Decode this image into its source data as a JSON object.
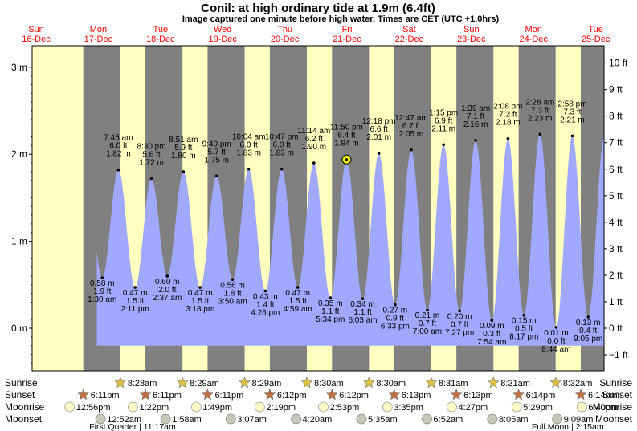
{
  "title": "Conil: at high  ordinary tide at 1.9m (6.4ft)",
  "subtitle": "Image captured one minute before high water. Times are CET (UTC +1.0hrs)",
  "days": [
    {
      "dow": "Sun",
      "date": "16-Dec"
    },
    {
      "dow": "Mon",
      "date": "17-Dec"
    },
    {
      "dow": "Tue",
      "date": "18-Dec"
    },
    {
      "dow": "Wed",
      "date": "19-Dec"
    },
    {
      "dow": "Thu",
      "date": "20-Dec"
    },
    {
      "dow": "Fri",
      "date": "21-Dec"
    },
    {
      "dow": "Sat",
      "date": "22-Dec"
    },
    {
      "dow": "Sun",
      "date": "23-Dec"
    },
    {
      "dow": "Mon",
      "date": "24-Dec"
    },
    {
      "dow": "Tue",
      "date": "25-Dec"
    }
  ],
  "colors": {
    "day_bg": "#ffffc0",
    "night_bg": "#808080",
    "tide_fill": "#a0a8ff",
    "day_header": "#ff0000",
    "frame": "#000000",
    "current_marker": "#ffff00"
  },
  "chart_data": {
    "type": "area",
    "ylabel_left": "m",
    "ylabel_right": "ft",
    "ylim_m": [
      -0.45,
      3.1
    ],
    "y_ticks_left": [
      {
        "v": 0,
        "label": "0 m"
      },
      {
        "v": 1,
        "label": "1 m"
      },
      {
        "v": 2,
        "label": "2 m"
      },
      {
        "v": 3,
        "label": "3 m"
      }
    ],
    "y_ticks_right": [
      {
        "ft": -1,
        "label": "−1 ft"
      },
      {
        "ft": 0,
        "label": "0 ft"
      },
      {
        "ft": 1,
        "label": "1 ft"
      },
      {
        "ft": 2,
        "label": "2 ft"
      },
      {
        "ft": 3,
        "label": "3 ft"
      },
      {
        "ft": 4,
        "label": "4 ft"
      },
      {
        "ft": 5,
        "label": "5 ft"
      },
      {
        "ft": 6,
        "label": "6 ft"
      },
      {
        "ft": 7,
        "label": "7 ft"
      },
      {
        "ft": 8,
        "label": "8 ft"
      },
      {
        "ft": 9,
        "label": "9 ft"
      },
      {
        "ft": 10,
        "label": "10 ft"
      }
    ],
    "x_range_days": [
      16.0,
      25.6
    ],
    "tides": [
      {
        "kind": "low",
        "day": 17,
        "time": "1:30 am",
        "m": "0.58 m",
        "ft": "1.9 ft",
        "v": 0.58
      },
      {
        "kind": "high",
        "day": 17,
        "time": "7:45 am",
        "m": "1.82 m",
        "ft": "6.0 ft",
        "v": 1.82
      },
      {
        "kind": "low",
        "day": 17,
        "time": "2:11 pm",
        "m": "0.47 m",
        "ft": "1.5 ft",
        "v": 0.47
      },
      {
        "kind": "high",
        "day": 17,
        "time": "8:30 pm",
        "m": "1.72 m",
        "ft": "5.6 ft",
        "v": 1.72
      },
      {
        "kind": "low",
        "day": 18,
        "time": "2:37 am",
        "m": "0.60 m",
        "ft": "2.0 ft",
        "v": 0.6
      },
      {
        "kind": "high",
        "day": 18,
        "time": "8:51 am",
        "m": "1.80 m",
        "ft": "5.9 ft",
        "v": 1.8
      },
      {
        "kind": "low",
        "day": 18,
        "time": "3:18 pm",
        "m": "0.47 m",
        "ft": "1.5 ft",
        "v": 0.47
      },
      {
        "kind": "high",
        "day": 18,
        "time": "9:40 pm",
        "m": "1.75 m",
        "ft": "5.7 ft",
        "v": 1.75
      },
      {
        "kind": "low",
        "day": 19,
        "time": "3:50 am",
        "m": "0.56 m",
        "ft": "1.8 ft",
        "v": 0.56
      },
      {
        "kind": "high",
        "day": 19,
        "time": "10:04 am",
        "m": "1.83 m",
        "ft": "6.0 ft",
        "v": 1.83
      },
      {
        "kind": "low",
        "day": 19,
        "time": "4:28 pm",
        "m": "0.43 m",
        "ft": "1.4 ft",
        "v": 0.43
      },
      {
        "kind": "high",
        "day": 19,
        "time": "10:47 pm",
        "m": "1.83 m",
        "ft": "6.0 ft",
        "v": 1.83
      },
      {
        "kind": "low",
        "day": 20,
        "time": "4:59 am",
        "m": "0.47 m",
        "ft": "1.5 ft",
        "v": 0.47
      },
      {
        "kind": "high",
        "day": 20,
        "time": "11:14 am",
        "m": "1.90 m",
        "ft": "6.2 ft",
        "v": 1.9
      },
      {
        "kind": "low",
        "day": 20,
        "time": "5:34 pm",
        "m": "0.35 m",
        "ft": "1.1 ft",
        "v": 0.35
      },
      {
        "kind": "high",
        "day": 20,
        "time": "11:50 pm",
        "m": "1.94 m",
        "ft": "6.4 ft",
        "v": 1.94,
        "current": true
      },
      {
        "kind": "low",
        "day": 21,
        "time": "6:03 am",
        "m": "0.34 m",
        "ft": "1.1 ft",
        "v": 0.34
      },
      {
        "kind": "high",
        "day": 21,
        "time": "12:18 pm",
        "m": "2.01 m",
        "ft": "6.6 ft",
        "v": 2.01
      },
      {
        "kind": "low",
        "day": 21,
        "time": "6:33 pm",
        "m": "0.27 m",
        "ft": "0.9 ft",
        "v": 0.27
      },
      {
        "kind": "high",
        "day": 22,
        "time": "12:47 am",
        "m": "2.05 m",
        "ft": "6.7 ft",
        "v": 2.05
      },
      {
        "kind": "low",
        "day": 22,
        "time": "7:00 am",
        "m": "0.21 m",
        "ft": "0.7 ft",
        "v": 0.21
      },
      {
        "kind": "high",
        "day": 22,
        "time": "1:15 pm",
        "m": "2.11 m",
        "ft": "6.9 ft",
        "v": 2.11
      },
      {
        "kind": "low",
        "day": 22,
        "time": "7:27 pm",
        "m": "0.20 m",
        "ft": "0.7 ft",
        "v": 0.2
      },
      {
        "kind": "high",
        "day": 23,
        "time": "1:39 am",
        "m": "2.16 m",
        "ft": "7.1 ft",
        "v": 2.16
      },
      {
        "kind": "low",
        "day": 23,
        "time": "7:54 am",
        "m": "0.09 m",
        "ft": "0.3 ft",
        "v": 0.09
      },
      {
        "kind": "high",
        "day": 23,
        "time": "2:08 pm",
        "m": "2.18 m",
        "ft": "7.2 ft",
        "v": 2.18
      },
      {
        "kind": "low",
        "day": 23,
        "time": "8:17 pm",
        "m": "0.15 m",
        "ft": "0.5 ft",
        "v": 0.15
      },
      {
        "kind": "high",
        "day": 24,
        "time": "2:28 am",
        "m": "2.23 m",
        "ft": "7.3 ft",
        "v": 2.23
      },
      {
        "kind": "low",
        "day": 24,
        "time": "8:44 am",
        "m": "0.01 m",
        "ft": "0.0 ft",
        "v": 0.01
      },
      {
        "kind": "high",
        "day": 24,
        "time": "2:58 pm",
        "m": "2.21 m",
        "ft": "7.3 ft",
        "v": 2.21
      },
      {
        "kind": "low",
        "day": 24,
        "time": "9:05 pm",
        "m": "0.13 m",
        "ft": "0.4 ft",
        "v": 0.13
      }
    ],
    "sun": [
      {
        "day": 17,
        "sunrise": "8:28am",
        "sunset": "6:11pm"
      },
      {
        "day": 18,
        "sunrise": "8:29am",
        "sunset": "6:11pm"
      },
      {
        "day": 19,
        "sunrise": "8:29am",
        "sunset": "6:12pm"
      },
      {
        "day": 20,
        "sunrise": "8:30am",
        "sunset": "6:12pm"
      },
      {
        "day": 21,
        "sunrise": "8:30am",
        "sunset": "6:13pm"
      },
      {
        "day": 22,
        "sunrise": "8:31am",
        "sunset": "6:13pm"
      },
      {
        "day": 23,
        "sunrise": "8:31am",
        "sunset": "6:14pm"
      },
      {
        "day": 24,
        "sunrise": "8:32am",
        "sunset": "6:14pm"
      }
    ],
    "sunset_first": {
      "day": 16,
      "time": "6:11pm"
    },
    "moonrise": [
      {
        "day": 16,
        "time": "12:56pm"
      },
      {
        "day": 17,
        "time": "1:22pm"
      },
      {
        "day": 18,
        "time": "1:49pm"
      },
      {
        "day": 19,
        "time": "2:19pm"
      },
      {
        "day": 20,
        "time": "2:53pm"
      },
      {
        "day": 21,
        "time": "3:35pm"
      },
      {
        "day": 22,
        "time": "4:27pm"
      },
      {
        "day": 23,
        "time": "5:29pm"
      },
      {
        "day": 24,
        "time": "6:40pm"
      }
    ],
    "moonset": [
      {
        "day": 17,
        "time": "12:52am"
      },
      {
        "day": 18,
        "time": "1:58am"
      },
      {
        "day": 19,
        "time": "3:07am"
      },
      {
        "day": 20,
        "time": "4:20am"
      },
      {
        "day": 21,
        "time": "5:35am"
      },
      {
        "day": 22,
        "time": "6:52am"
      },
      {
        "day": 23,
        "time": "8:05am"
      },
      {
        "day": 24,
        "time": "9:09am"
      }
    ],
    "moon_phases": [
      {
        "label": "First Quarter | 11:17am",
        "day": 17
      },
      {
        "label": "Full Moon | 2:15am",
        "day": 24
      }
    ],
    "row_labels": {
      "sunrise": "Sunrise",
      "sunset": "Sunset",
      "moonrise": "Moonrise",
      "moonset": "Moonset"
    }
  }
}
